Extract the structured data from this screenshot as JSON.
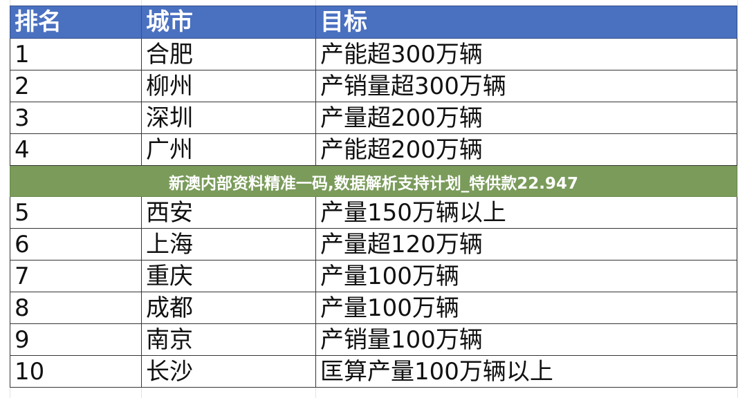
{
  "table": {
    "headers": [
      "排名",
      "城市",
      "目标"
    ],
    "rows": [
      [
        "1",
        "合肥",
        "产能超300万辆"
      ],
      [
        "2",
        "柳州",
        "产销量超300万辆"
      ],
      [
        "3",
        "深圳",
        "产量超200万辆"
      ],
      [
        "4",
        "广州",
        "产能超200万辆"
      ],
      [
        "5",
        "西安",
        "产量150万辆以上"
      ],
      [
        "6",
        "上海",
        "产量超120万辆"
      ],
      [
        "7",
        "重庆",
        "产量100万辆"
      ],
      [
        "8",
        "成都",
        "产量100万辆"
      ],
      [
        "9",
        "南京",
        "产销量100万辆"
      ],
      [
        "10",
        "长沙",
        "匡算产量100万辆以上"
      ]
    ]
  },
  "banner": {
    "text": "新澳内部资料精准一码,数据解析支持计划_特供款22.947"
  },
  "colors": {
    "header_bg": "#4a70c0",
    "banner_bg": "#7a9b5a"
  }
}
